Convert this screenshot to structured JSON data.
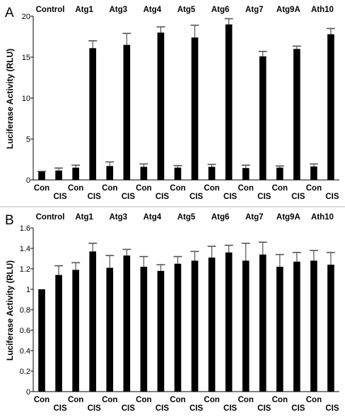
{
  "chart_data": [
    {
      "type": "bar",
      "panel": "A",
      "groups": [
        "Control",
        "Atg1",
        "Atg3",
        "Atg4",
        "Atg5",
        "Atg6",
        "Atg7",
        "Atg9A",
        "Ath10"
      ],
      "categories": [
        "Con",
        "CIS",
        "Con",
        "CIS",
        "Con",
        "CIS",
        "Con",
        "CIS",
        "Con",
        "CIS",
        "Con",
        "CIS",
        "Con",
        "CIS",
        "Con",
        "CIS",
        "Con",
        "CIS"
      ],
      "values": [
        1.0,
        1.15,
        1.5,
        16.1,
        1.7,
        16.5,
        1.6,
        18.0,
        1.5,
        17.4,
        1.6,
        19.0,
        1.45,
        15.1,
        1.5,
        16.0,
        1.65,
        17.8
      ],
      "errors": [
        0.05,
        0.3,
        0.3,
        0.9,
        0.5,
        1.4,
        0.35,
        0.7,
        0.25,
        1.5,
        0.3,
        0.7,
        0.35,
        0.6,
        0.2,
        0.35,
        0.3,
        0.7
      ],
      "ylabel": "Luciferase Activity (RLU)",
      "ylim": [
        0,
        20
      ],
      "yticks": [
        "0",
        "5",
        "10",
        "15",
        "20"
      ],
      "grid": false
    },
    {
      "type": "bar",
      "panel": "B",
      "groups": [
        "Control",
        "Atg1",
        "Atg3",
        "Atg4",
        "Atg5",
        "Atg6",
        "Atg7",
        "Atg9A",
        "Ath10"
      ],
      "categories": [
        "Con",
        "CIS",
        "Con",
        "CIS",
        "Con",
        "CIS",
        "Con",
        "CIS",
        "Con",
        "CIS",
        "Con",
        "CIS",
        "Con",
        "CIS",
        "Con",
        "CIS",
        "Con",
        "CIS"
      ],
      "values": [
        1.0,
        1.14,
        1.19,
        1.37,
        1.21,
        1.33,
        1.22,
        1.18,
        1.25,
        1.28,
        1.31,
        1.36,
        1.28,
        1.34,
        1.22,
        1.27,
        1.28,
        1.24
      ],
      "errors": [
        0.0,
        0.09,
        0.07,
        0.08,
        0.12,
        0.06,
        0.1,
        0.06,
        0.07,
        0.09,
        0.11,
        0.07,
        0.17,
        0.12,
        0.12,
        0.09,
        0.1,
        0.12
      ],
      "ylabel": "Luciferase Activity (RLU)",
      "ylim": [
        0,
        1.6
      ],
      "yticks": [
        "0",
        "0.2",
        "0.4",
        "0.6",
        "0.8",
        "1",
        "1.2",
        "1.4",
        "1.6"
      ],
      "grid": false
    }
  ],
  "colors": {
    "bar": "#000000",
    "errorbar": "#555555",
    "axis": "#000000",
    "divider": "#bbbbbb"
  }
}
